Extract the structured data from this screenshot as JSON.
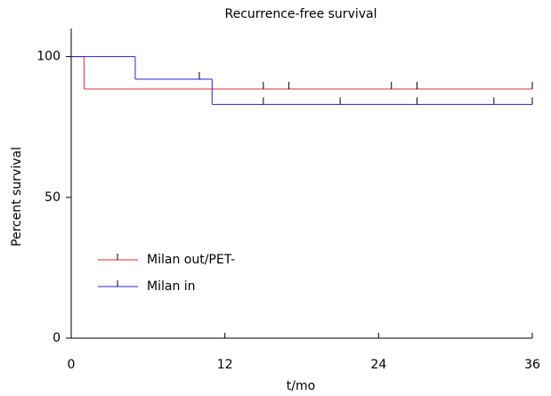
{
  "chart_data": {
    "type": "step",
    "title": "Recurrence-free survival",
    "xlabel": "t/mo",
    "ylabel": "Percent survival",
    "xlim": [
      0,
      36
    ],
    "xticks": [
      0,
      12,
      24,
      36
    ],
    "ylim": [
      0,
      110
    ],
    "yticks": [
      0,
      50,
      100
    ],
    "legend": "lower-left",
    "series": [
      {
        "name": "Milan out/PET-",
        "color": "#e8262b",
        "x": [
          0,
          1,
          36
        ],
        "values": [
          100,
          88.5,
          88.5
        ],
        "censor_x": [
          15,
          17,
          25,
          27,
          36
        ]
      },
      {
        "name": "Milan in",
        "color": "#2323d6",
        "x": [
          0,
          5,
          11,
          36
        ],
        "values": [
          100,
          92,
          83,
          83
        ],
        "censor_x": [
          10,
          15,
          21,
          27,
          33,
          36
        ]
      }
    ]
  }
}
